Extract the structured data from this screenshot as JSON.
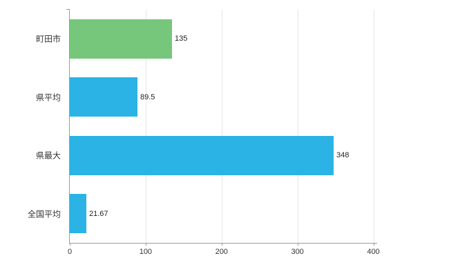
{
  "chart_data": {
    "type": "bar",
    "orientation": "horizontal",
    "title": "",
    "xlabel": "",
    "ylabel": "",
    "categories": [
      "町田市",
      "県平均",
      "県最大",
      "全国平均"
    ],
    "values": [
      135,
      89.5,
      348,
      21.67
    ],
    "value_labels": [
      "135",
      "89.5",
      "348",
      "21.67"
    ],
    "bar_colors": [
      "#76c77b",
      "#2bb3e6",
      "#2bb3e6",
      "#2bb3e6"
    ],
    "xlim": [
      0,
      405
    ],
    "x_ticks": [
      0,
      100,
      200,
      300,
      400
    ],
    "grid": true,
    "legend": "none",
    "colors": {
      "axis": "#9b9b9b",
      "gridline": "#e4e4e4",
      "text": "#333333",
      "background": "#ffffff"
    }
  }
}
